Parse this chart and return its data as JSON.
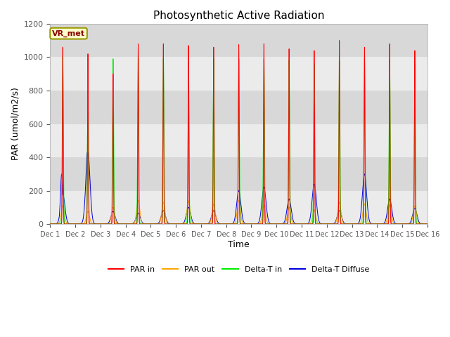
{
  "title": "Photosynthetic Active Radiation",
  "xlabel": "Time",
  "ylabel": "PAR (umol/m2/s)",
  "ylim": [
    0,
    1200
  ],
  "yticks": [
    0,
    200,
    400,
    600,
    800,
    1000,
    1200
  ],
  "colors": {
    "PAR_in": "#ff0000",
    "PAR_out": "#ffa500",
    "Delta_T_in": "#00ee00",
    "Delta_T_Diffuse": "#0000dd"
  },
  "label_box": "VR_met",
  "n_days": 15,
  "hours_per_day": 24,
  "background_color": "#ebebeb",
  "background_color2": "#d8d8d8",
  "legend_labels": [
    "PAR in",
    "PAR out",
    "Delta-T in",
    "Delta-T Diffuse"
  ],
  "par_in_peaks": [
    1060,
    1020,
    900,
    1080,
    1080,
    1070,
    1060,
    1075,
    1080,
    1050,
    1040,
    1100,
    1060,
    1080,
    1040
  ],
  "par_out_peaks": [
    110,
    75,
    100,
    140,
    130,
    140,
    120,
    140,
    110,
    100,
    85,
    130,
    120,
    115,
    110
  ],
  "delta_t_in_peaks": [
    1000,
    800,
    990,
    1000,
    990,
    975,
    990,
    990,
    990,
    980,
    960,
    980,
    990,
    980,
    960
  ],
  "delta_t_diffuse_peaks": [
    180,
    430,
    75,
    65,
    80,
    100,
    80,
    200,
    220,
    150,
    240,
    80,
    300,
    150,
    95
  ],
  "par_in_sigma": 0.35,
  "par_out_sigma": 1.5,
  "delta_t_in_sigma": 0.5,
  "delta_t_diffuse_sigma": 2.0,
  "day2_extra_blue": 300,
  "day2_extra_blue_sigma": 1.2
}
